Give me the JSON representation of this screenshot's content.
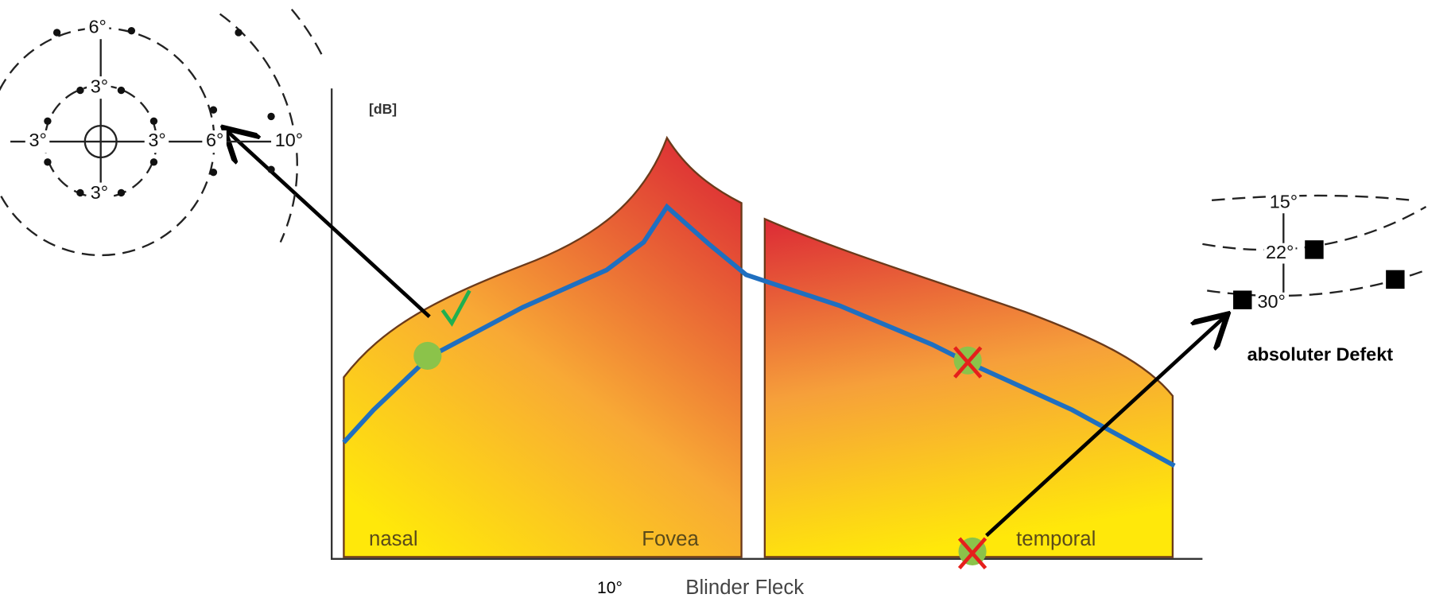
{
  "axis_label": "[dB]",
  "regions": [
    "nasal",
    "Fovea",
    "temporal"
  ],
  "x_labels": [
    "10°",
    "Blinder Fleck"
  ],
  "annotation": "absoluter Defekt",
  "left_grid_labels": [
    "6°",
    "3°",
    "3°",
    "3°",
    "3°",
    "6°",
    "10°"
  ],
  "right_grid_labels": [
    "15°",
    "22°",
    "30°"
  ]
}
